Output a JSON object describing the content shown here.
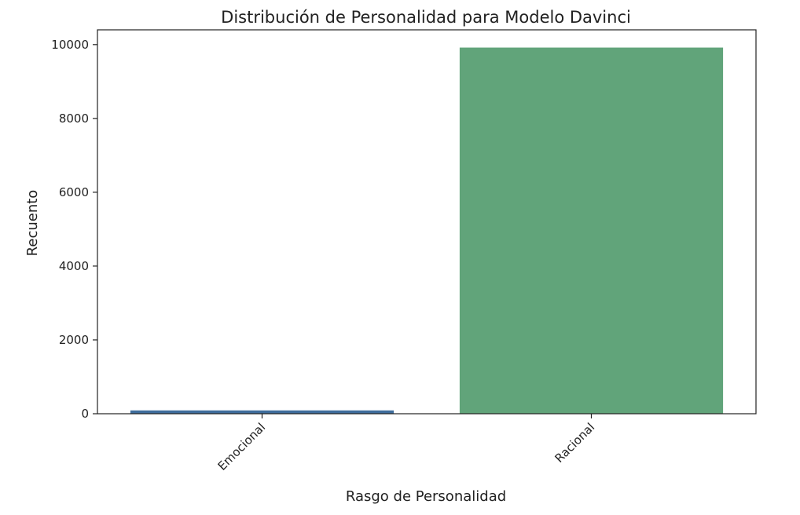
{
  "chart_data": {
    "type": "bar",
    "title": "Distribución de Personalidad para Modelo Davinci",
    "xlabel": "Rasgo de Personalidad",
    "ylabel": "Recuento",
    "categories": [
      "Emocional",
      "Racional"
    ],
    "values": [
      90,
      9920
    ],
    "colors": [
      "#3f6d9c",
      "#61a47a"
    ],
    "ylim": [
      0,
      10400
    ],
    "yticks": [
      0,
      2000,
      4000,
      6000,
      8000,
      10000
    ],
    "ytick_labels": [
      "0",
      "2000",
      "4000",
      "6000",
      "8000",
      "10000"
    ],
    "grid": false,
    "xtick_rotation": "45°"
  }
}
